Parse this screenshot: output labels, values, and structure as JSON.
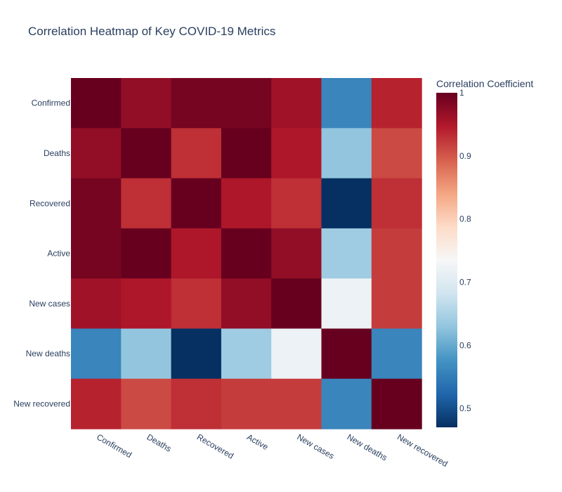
{
  "chart_data": {
    "type": "heatmap",
    "title": "Correlation Heatmap of Key COVID-19 Metrics",
    "x_categories": [
      "Confirmed",
      "Deaths",
      "Recovered",
      "Active",
      "New cases",
      "New deaths",
      "New recovered"
    ],
    "y_categories": [
      "Confirmed",
      "Deaths",
      "Recovered",
      "Active",
      "New cases",
      "New deaths",
      "New recovered"
    ],
    "values": [
      [
        1.0,
        0.97,
        0.99,
        0.99,
        0.96,
        0.56,
        0.94
      ],
      [
        0.97,
        1.0,
        0.93,
        1.0,
        0.95,
        0.63,
        0.91
      ],
      [
        0.99,
        0.93,
        1.0,
        0.95,
        0.93,
        0.47,
        0.93
      ],
      [
        0.99,
        1.0,
        0.95,
        1.0,
        0.97,
        0.64,
        0.92
      ],
      [
        0.96,
        0.95,
        0.93,
        0.97,
        1.0,
        0.72,
        0.92
      ],
      [
        0.56,
        0.63,
        0.47,
        0.64,
        0.72,
        1.0,
        0.56
      ],
      [
        0.94,
        0.91,
        0.93,
        0.92,
        0.92,
        0.56,
        1.0
      ]
    ],
    "colorscale": "RdBu reversed",
    "zmin": 0.47,
    "zmax": 1.0,
    "colorbar": {
      "title": "Correlation Coefficient",
      "ticks": [
        0.5,
        0.6,
        0.7,
        0.8,
        0.9,
        1
      ],
      "tick_labels": [
        "0.5",
        "0.6",
        "0.7",
        "0.8",
        "0.9",
        "1"
      ]
    },
    "colors": {
      "scale_stops": [
        "#053061",
        "#2166ac",
        "#4393c3",
        "#92c5de",
        "#d1e5f0",
        "#f7f7f7",
        "#fddbc7",
        "#f4a582",
        "#d6604d",
        "#b2182b",
        "#67001f"
      ]
    }
  }
}
